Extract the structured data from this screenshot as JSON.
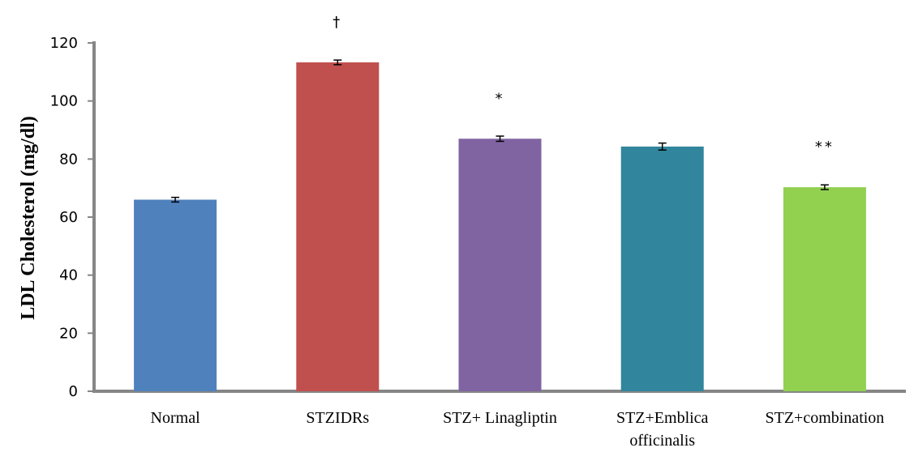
{
  "chart_data": {
    "type": "bar",
    "title": "",
    "xlabel": "",
    "ylabel": "LDL Cholesterol (mg/dl)",
    "ylim": [
      0,
      120
    ],
    "yticks": [
      0,
      20,
      40,
      60,
      80,
      100,
      120
    ],
    "grid": false,
    "categories": [
      [
        "Normal"
      ],
      [
        "STZIDRs"
      ],
      [
        "STZ+ Linagliptin"
      ],
      [
        "STZ+Emblica",
        "officinalis"
      ],
      [
        "STZ+combination"
      ]
    ],
    "values": [
      66,
      113.3,
      87,
      84.3,
      70.3
    ],
    "errors": [
      0.8,
      0.8,
      0.9,
      1.2,
      0.8
    ],
    "annotations": [
      "",
      "†",
      "*",
      "",
      "**"
    ],
    "colors": [
      "#4f81bd",
      "#c0504d",
      "#8064a2",
      "#31859c",
      "#92d050"
    ]
  }
}
